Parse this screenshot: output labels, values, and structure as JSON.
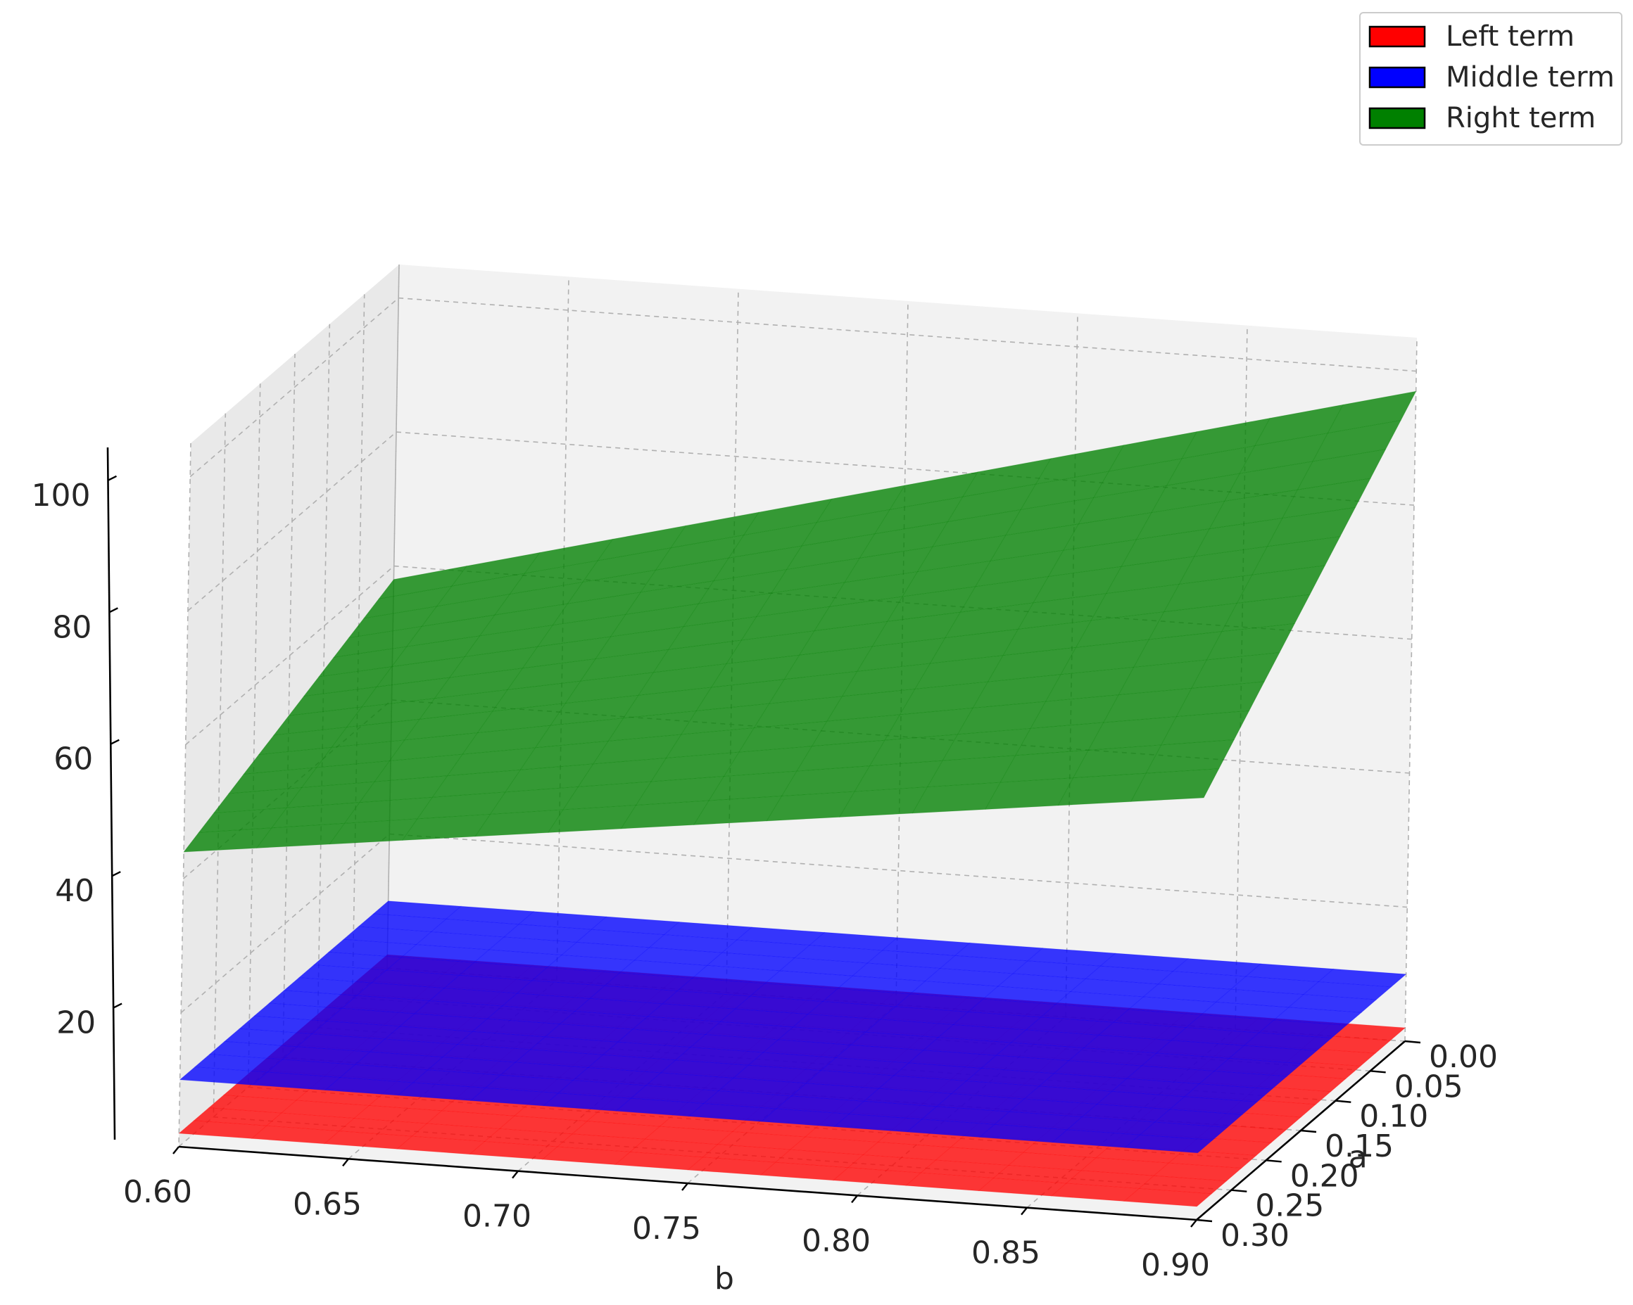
{
  "chart_data": {
    "type": "surface3d",
    "title": "",
    "xlabel": "b",
    "ylabel": "a",
    "zlabel": "",
    "x_ticks": [
      "0.60",
      "0.65",
      "0.70",
      "0.75",
      "0.80",
      "0.85",
      "0.90"
    ],
    "y_ticks": [
      "0.00",
      "0.05",
      "0.10",
      "0.15",
      "0.20",
      "0.25",
      "0.30"
    ],
    "z_ticks": [
      "20",
      "40",
      "60",
      "80",
      "100"
    ],
    "xlim": [
      0.6,
      0.9
    ],
    "ylim": [
      0.0,
      0.3
    ],
    "zlim": [
      0,
      105
    ],
    "grid": true,
    "legend_position": "top-right",
    "series": [
      {
        "name": "Left term",
        "color": "#ff0000",
        "corners": {
          "b0.60_a0.00": 2,
          "b0.90_a0.00": 2,
          "b0.60_a0.30": 2,
          "b0.90_a0.30": 2
        }
      },
      {
        "name": "Middle term",
        "color": "#0000ff",
        "corners": {
          "b0.60_a0.00": 10,
          "b0.90_a0.00": 10,
          "b0.60_a0.30": 10,
          "b0.90_a0.30": 10
        }
      },
      {
        "name": "Right term",
        "color": "#008000",
        "corners": {
          "b0.60_a0.00": 58,
          "b0.90_a0.00": 97,
          "b0.60_a0.30": 44,
          "b0.90_a0.30": 63
        }
      }
    ]
  }
}
